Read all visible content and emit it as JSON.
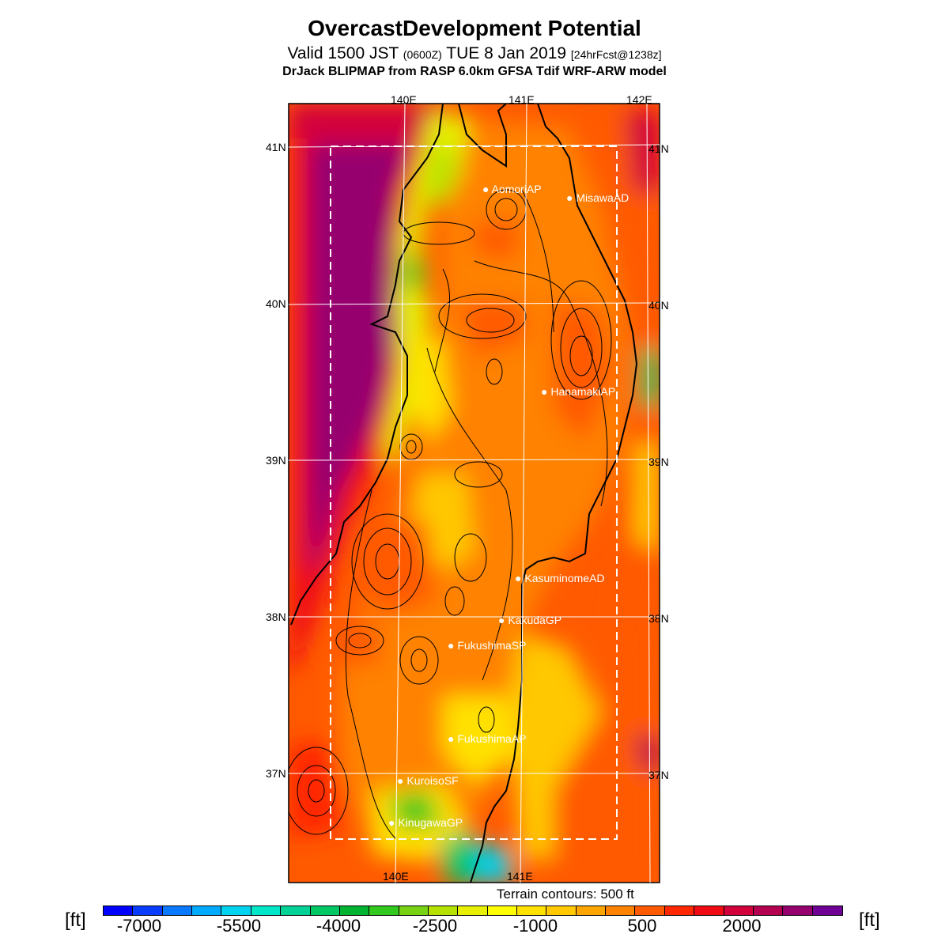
{
  "header": {
    "title": "OvercastDevelopment Potential",
    "valid_prefix": "Valid 1500 JST",
    "valid_zulu": "(0600Z)",
    "valid_date": "TUE 8 Jan 2019",
    "forecast": "[24hrFcst@1238z]",
    "subtitle": "DrJack BLIPMAP from RASP 6.0km GFSA Tdif WRF-ARW model"
  },
  "map": {
    "lon_labels": [
      "140E",
      "141E",
      "142E"
    ],
    "lat_labels": [
      "41N",
      "40N",
      "39N",
      "38N",
      "37N"
    ],
    "stations": [
      {
        "name": "AomoriAP",
        "lat": 40.73,
        "lon": 140.69
      },
      {
        "name": "MisawaAD",
        "lat": 40.7,
        "lon": 141.37
      },
      {
        "name": "HanamakiAP",
        "lat": 39.43,
        "lon": 141.14
      },
      {
        "name": "KasuminomeAD",
        "lat": 38.24,
        "lon": 140.93
      },
      {
        "name": "KakudaGP",
        "lat": 37.98,
        "lon": 140.78
      },
      {
        "name": "FukushimaSP",
        "lat": 37.82,
        "lon": 140.44
      },
      {
        "name": "FukushimaAP",
        "lat": 37.23,
        "lon": 140.43
      },
      {
        "name": "KuroisoSF",
        "lat": 36.97,
        "lon": 140.02
      },
      {
        "name": "KinugawaGP",
        "lat": 36.68,
        "lon": 139.95
      }
    ],
    "terrain_note": "Terrain contours: 500 ft"
  },
  "colorbar": {
    "unit": "[ft]",
    "tick_labels": [
      "-7000",
      "-5500",
      "-4000",
      "-2500",
      "-1000",
      "500",
      "2000"
    ],
    "colors": [
      "#0000ff",
      "#0a3cff",
      "#0a78ff",
      "#00aaff",
      "#00d2f0",
      "#00e6c8",
      "#00d296",
      "#00c864",
      "#00b432",
      "#32c81e",
      "#78d214",
      "#b4e100",
      "#e6f000",
      "#ffff00",
      "#ffe100",
      "#ffc800",
      "#ffa500",
      "#ff8200",
      "#ff5a00",
      "#ff2800",
      "#f00a14",
      "#d2003c",
      "#b40050",
      "#96006e",
      "#6e0096"
    ]
  }
}
